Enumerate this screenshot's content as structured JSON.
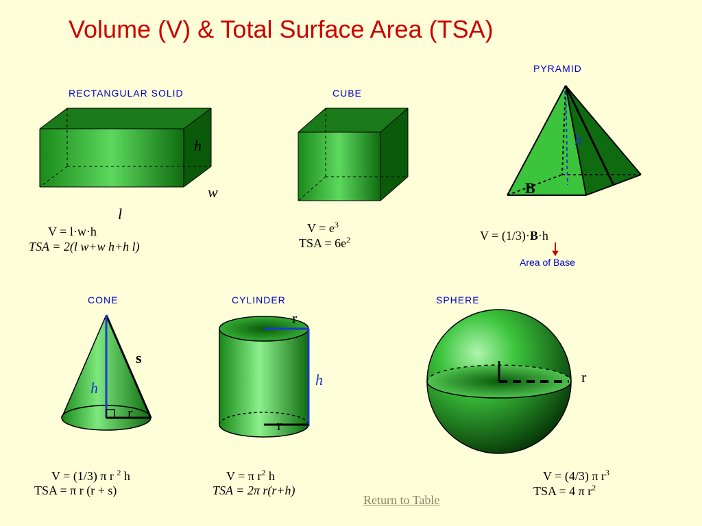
{
  "title": "Volume (V) & Total Surface Area (TSA)",
  "colors": {
    "background": "#fefed8",
    "title": "#cc0000",
    "label": "#0000cc",
    "text": "#000000",
    "shape_light": "#5dd85d",
    "shape_mid": "#2eb82e",
    "shape_dark": "#0f6b0f",
    "shape_top": "#1a8a1a",
    "radius_line": "#1a3acc",
    "link": "#888866"
  },
  "shapes": {
    "rect": {
      "label": "RECTANGULAR SOLID",
      "dims": {
        "h": "h",
        "w": "w",
        "l": "l"
      },
      "v": "V  = l·w·h",
      "tsa": "TSA = 2(l w+w h+h l)"
    },
    "cube": {
      "label": "CUBE",
      "v_html": "V    = e<sup>3</sup>",
      "tsa_html": "TSA = 6e<sup>2</sup>"
    },
    "pyramid": {
      "label": "PYRAMID",
      "dims": {
        "h": "h",
        "b": "B"
      },
      "v_html": "V = (1/3)·<b>B</b>·h",
      "base_note": "Area of Base"
    },
    "cone": {
      "label": "CONE",
      "dims": {
        "h": "h",
        "r": "r",
        "s": "s"
      },
      "v_html": "V  = (1/3) π r <sup>2</sup> h",
      "tsa": "TSA = π r (r + s)"
    },
    "cylinder": {
      "label": "CYLINDER",
      "dims": {
        "h": "h",
        "r": "r",
        "r2": "r"
      },
      "v_html": "V  = π r<sup>2</sup> h",
      "tsa_html": "TSA  = 2π r(r+h)"
    },
    "sphere": {
      "label": "SPHERE",
      "dims": {
        "r": "r"
      },
      "v_html": "V  = (4/3) π r<sup>3</sup>",
      "tsa_html": "TSA = 4 π r<sup>2</sup>"
    }
  },
  "link": "Return to Table"
}
